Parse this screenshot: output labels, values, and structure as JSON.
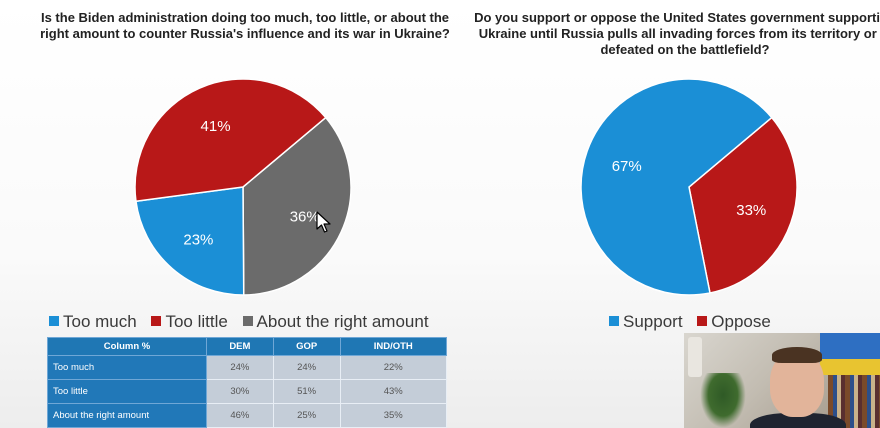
{
  "colors": {
    "blue": "#1b8fd6",
    "red": "#b81818",
    "gray": "#6b6b6b",
    "table_header": "#1f77b4",
    "table_cell": "#c4cdd8"
  },
  "chart_data": [
    {
      "type": "pie",
      "title": "Is the Biden administration doing too much, too little, or about the right amount to counter Russia's influence and its war in Ukraine?",
      "categories": [
        "Too much",
        "Too little",
        "About the right amount"
      ],
      "values": [
        23,
        41,
        36
      ],
      "labels": [
        "23%",
        "41%",
        "36%"
      ],
      "colors": [
        "#1b8fd6",
        "#b81818",
        "#6b6b6b"
      ],
      "legend": "bottom"
    },
    {
      "type": "pie",
      "title": "Do you support or oppose the United States government supporting Ukraine until Russia pulls all invading forces from its territory or is defeated on the battlefield?",
      "categories": [
        "Support",
        "Oppose"
      ],
      "values": [
        67,
        33
      ],
      "labels": [
        "67%",
        "33%"
      ],
      "colors": [
        "#1b8fd6",
        "#b81818"
      ],
      "legend": "bottom"
    },
    {
      "type": "table",
      "columns": [
        "Column %",
        "DEM",
        "GOP",
        "IND/OTH"
      ],
      "rows": [
        {
          "label": "Too much",
          "values": [
            "24%",
            "24%",
            "22%"
          ]
        },
        {
          "label": "Too little",
          "values": [
            "30%",
            "51%",
            "43%"
          ]
        },
        {
          "label": "About the right amount",
          "values": [
            "46%",
            "25%",
            "35%"
          ]
        }
      ]
    }
  ]
}
